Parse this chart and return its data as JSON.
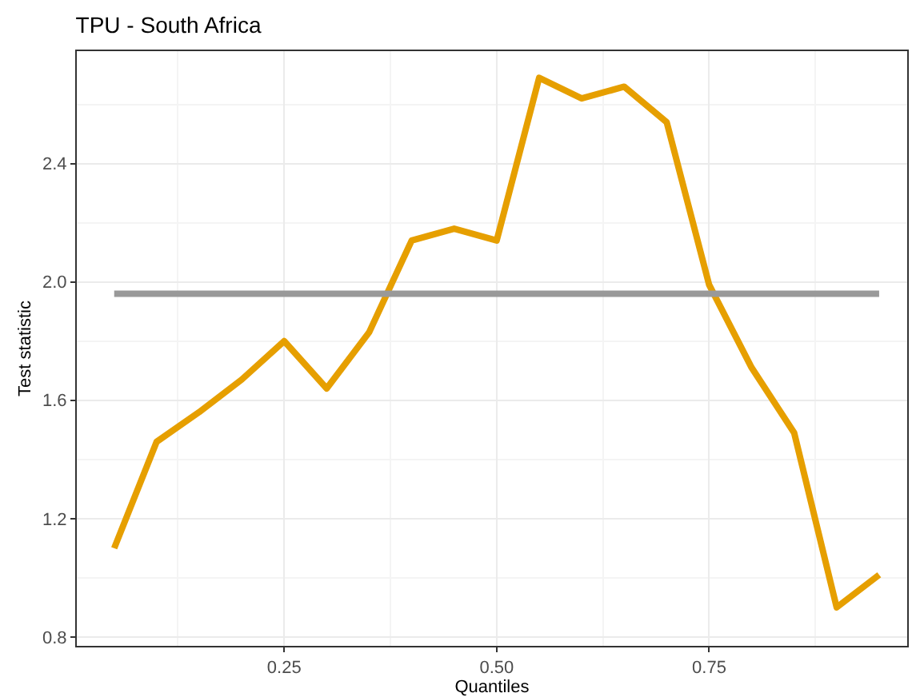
{
  "chart_data": {
    "type": "line",
    "title": "TPU - South Africa",
    "xlabel": "Quantiles",
    "ylabel": "Test statistic",
    "x": [
      0.05,
      0.1,
      0.15,
      0.2,
      0.25,
      0.3,
      0.35,
      0.4,
      0.45,
      0.5,
      0.55,
      0.6,
      0.65,
      0.7,
      0.75,
      0.8,
      0.85,
      0.9,
      0.95
    ],
    "series": [
      {
        "color": "#e69f00",
        "values": [
          1.1,
          1.46,
          1.56,
          1.67,
          1.8,
          1.64,
          1.83,
          2.14,
          2.18,
          2.14,
          2.69,
          2.62,
          2.66,
          2.54,
          1.99,
          1.71,
          1.49,
          0.9,
          1.01
        ]
      },
      {
        "color": "#999999",
        "x": [
          0.05,
          0.95
        ],
        "values": [
          1.96,
          1.96
        ]
      }
    ],
    "xlim": [
      0.006,
      0.983
    ],
    "ylim": [
      0.77,
      2.78
    ],
    "xticks": [
      0.25,
      {
        "value": 0.5,
        "label": "0.50"
      },
      0.75
    ],
    "yticks": [
      0.8,
      1.2,
      1.6,
      {
        "value": 2.0,
        "label": "2.0"
      },
      2.4
    ],
    "grid": true
  }
}
